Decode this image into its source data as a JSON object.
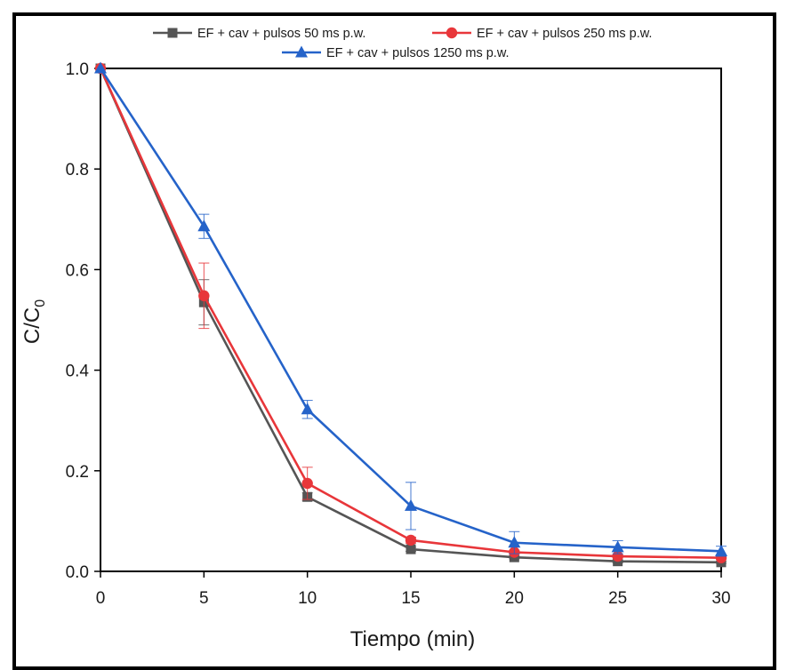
{
  "chart_data": {
    "type": "line",
    "title": "",
    "xlabel": "Tiempo (min)",
    "ylabel_main": "C/C",
    "ylabel_sub": "0",
    "xlim": [
      0,
      30
    ],
    "ylim": [
      0,
      1.0
    ],
    "xticks": [
      0,
      5,
      10,
      15,
      20,
      25,
      30
    ],
    "yticks": [
      0.0,
      0.2,
      0.4,
      0.6,
      0.8,
      1.0
    ],
    "xtick_labels": [
      "0",
      "5",
      "10",
      "15",
      "20",
      "25",
      "30"
    ],
    "ytick_labels": [
      "0.0",
      "0.2",
      "0.4",
      "0.6",
      "0.8",
      "1.0"
    ],
    "legend_position": "top-center",
    "x": [
      0,
      5,
      10,
      15,
      20,
      25,
      30
    ],
    "series": [
      {
        "name": "EF + cav + pulsos 50 ms p.w.",
        "color": "#555555",
        "marker": "square",
        "values": [
          1.0,
          0.535,
          0.148,
          0.044,
          0.028,
          0.02,
          0.018
        ],
        "errors": [
          0,
          0.045,
          0.008,
          0.004,
          0.003,
          0.003,
          0.002
        ]
      },
      {
        "name": "EF + cav + pulsos 250 ms p.w.",
        "color": "#e8363a",
        "marker": "circle",
        "values": [
          1.0,
          0.548,
          0.175,
          0.062,
          0.038,
          0.03,
          0.027
        ],
        "errors": [
          0,
          0.065,
          0.032,
          0.006,
          0.004,
          0.003,
          0.003
        ]
      },
      {
        "name": "EF + cav + pulsos 1250 ms p.w.",
        "color": "#2563c9",
        "marker": "triangle",
        "values": [
          1.0,
          0.686,
          0.322,
          0.13,
          0.057,
          0.048,
          0.04
        ],
        "errors": [
          0,
          0.024,
          0.018,
          0.047,
          0.022,
          0.013,
          0.01
        ]
      }
    ]
  }
}
